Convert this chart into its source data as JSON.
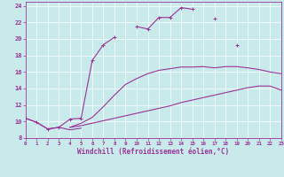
{
  "xlabel": "Windchill (Refroidissement éolien,°C)",
  "bg_color": "#c8eaea",
  "line_color": "#993399",
  "xlim": [
    0,
    23
  ],
  "ylim": [
    8,
    24.5
  ],
  "xticks": [
    0,
    1,
    2,
    3,
    4,
    5,
    6,
    7,
    8,
    9,
    10,
    11,
    12,
    13,
    14,
    15,
    16,
    17,
    18,
    19,
    20,
    21,
    22,
    23
  ],
  "yticks": [
    8,
    10,
    12,
    14,
    16,
    18,
    20,
    22,
    24
  ],
  "series_main": {
    "segments": [
      {
        "x": [
          0,
          1,
          2,
          3,
          4,
          5,
          6,
          7,
          8
        ],
        "y": [
          10.4,
          9.9,
          9.1,
          9.3,
          10.3,
          10.4,
          17.4,
          19.3,
          20.2
        ]
      },
      {
        "x": [
          10,
          11,
          12,
          13,
          14,
          15
        ],
        "y": [
          21.5,
          21.2,
          22.6,
          22.6,
          23.8,
          23.6
        ]
      },
      {
        "x": [
          17
        ],
        "y": [
          22.5
        ]
      },
      {
        "x": [
          19
        ],
        "y": [
          19.3
        ]
      }
    ]
  },
  "series_lower_left": {
    "x": [
      0,
      1,
      2,
      3,
      4,
      5
    ],
    "y": [
      10.4,
      9.9,
      9.1,
      9.3,
      9.0,
      9.2
    ]
  },
  "series_bottom": {
    "x": [
      4,
      5,
      6,
      7,
      8,
      9,
      10,
      11,
      12,
      13,
      14,
      15,
      16,
      17,
      18,
      19,
      20,
      21,
      22,
      23
    ],
    "y": [
      9.3,
      9.5,
      9.8,
      10.1,
      10.4,
      10.7,
      11.0,
      11.3,
      11.6,
      11.9,
      12.3,
      12.6,
      12.9,
      13.2,
      13.5,
      13.8,
      14.1,
      14.3,
      14.3,
      13.8
    ]
  },
  "series_mid": {
    "x": [
      4,
      5,
      6,
      7,
      8,
      9,
      10,
      11,
      12,
      13,
      14,
      15,
      16,
      17,
      18,
      19,
      20,
      21,
      22,
      23
    ],
    "y": [
      9.3,
      9.8,
      10.5,
      11.8,
      13.2,
      14.5,
      15.2,
      15.8,
      16.2,
      16.4,
      16.6,
      16.6,
      16.65,
      16.5,
      16.65,
      16.65,
      16.5,
      16.3,
      16.0,
      15.8
    ]
  }
}
